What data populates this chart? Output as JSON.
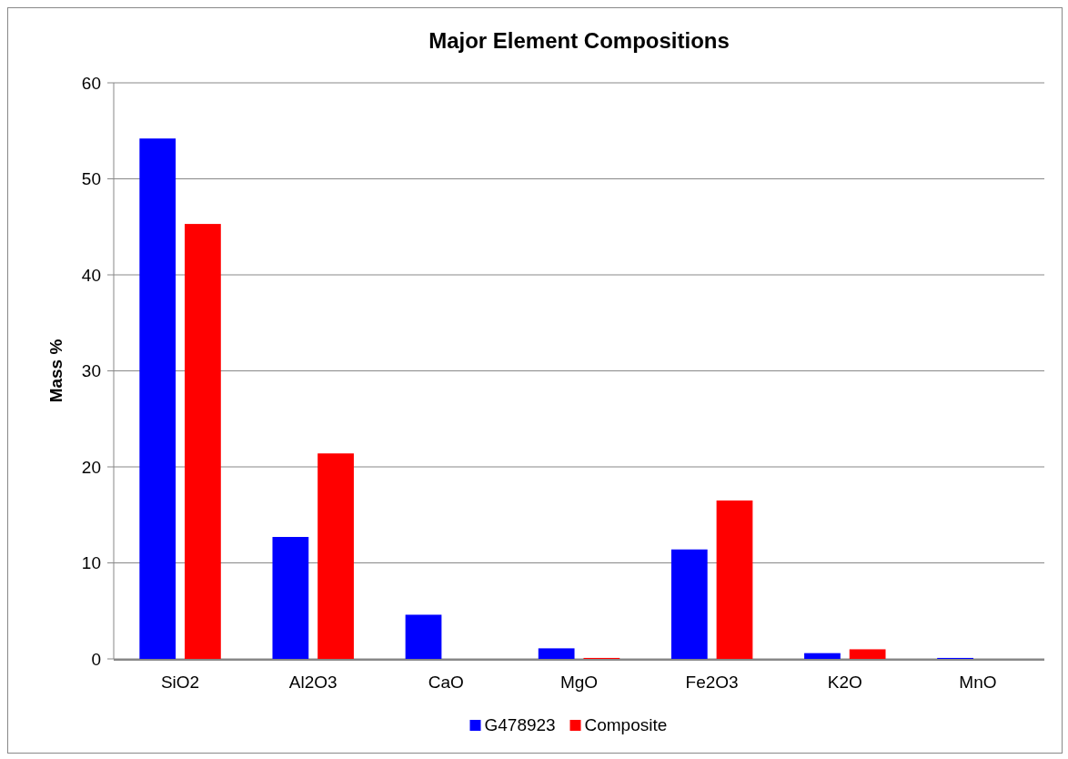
{
  "chart_data": {
    "type": "bar",
    "title": "Major Element Compositions",
    "ylabel": "Mass %",
    "categories": [
      "SiO2",
      "Al2O3",
      "CaO",
      "MgO",
      "Fe2O3",
      "K2O",
      "MnO"
    ],
    "series": [
      {
        "name": "G478923",
        "color": "#0000ff",
        "values": [
          54.2,
          12.7,
          4.6,
          1.1,
          11.4,
          0.6,
          0.1
        ]
      },
      {
        "name": "Composite",
        "color": "#ff0000",
        "values": [
          45.3,
          21.4,
          0,
          0.1,
          16.5,
          1.0,
          0
        ]
      }
    ],
    "ylim": [
      0,
      60
    ],
    "yticks": [
      0,
      10,
      20,
      30,
      40,
      50,
      60
    ],
    "grid": "y",
    "legend": "bottom"
  }
}
